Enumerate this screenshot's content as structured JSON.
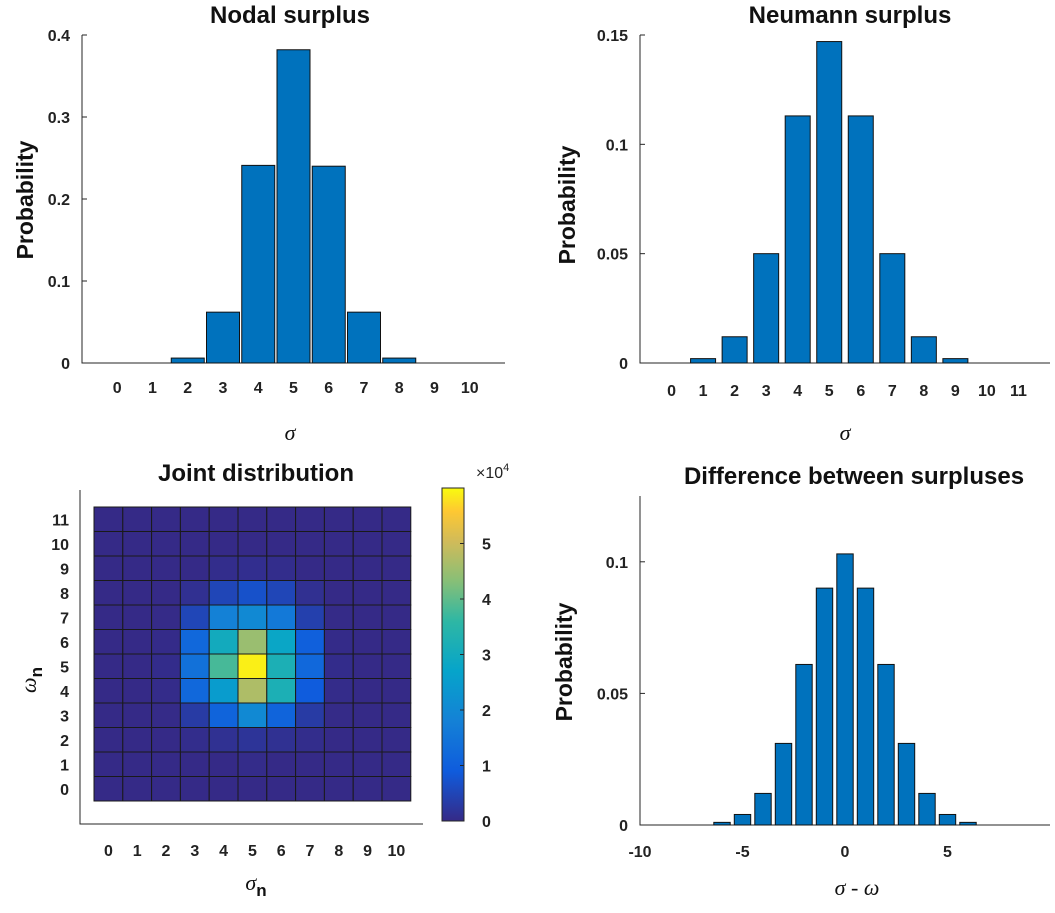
{
  "chart_data": [
    {
      "type": "bar",
      "title": "Nodal surplus",
      "xlabel": "σ",
      "ylabel": "Probability",
      "categories": [
        "0",
        "1",
        "2",
        "3",
        "4",
        "5",
        "6",
        "7",
        "8",
        "9",
        "10"
      ],
      "values": [
        0,
        0,
        0.006,
        0.062,
        0.241,
        0.382,
        0.24,
        0.062,
        0.006,
        0,
        0
      ],
      "ylim": [
        0,
        0.4
      ],
      "yticks": [
        "0",
        "0.1",
        "0.2",
        "0.3",
        "0.4"
      ],
      "grid": false
    },
    {
      "type": "bar",
      "title": "Neumann surplus",
      "xlabel": "σ",
      "ylabel": "Probability",
      "categories": [
        "0",
        "1",
        "2",
        "3",
        "4",
        "5",
        "6",
        "7",
        "8",
        "9",
        "10",
        "11"
      ],
      "values": [
        0,
        0.002,
        0.012,
        0.05,
        0.113,
        0.147,
        0.113,
        0.05,
        0.012,
        0.002,
        0,
        0
      ],
      "ylim": [
        0,
        0.15
      ],
      "yticks": [
        "0",
        "0.05",
        "0.1",
        "0.15"
      ],
      "grid": false
    },
    {
      "type": "heatmap",
      "title": "Joint distribution",
      "xlabel": "σ",
      "xlabel_sub": "n",
      "ylabel": "ω",
      "ylabel_sub": "n",
      "x": [
        "0",
        "1",
        "2",
        "3",
        "4",
        "5",
        "6",
        "7",
        "8",
        "9",
        "10"
      ],
      "y": [
        "0",
        "1",
        "2",
        "3",
        "4",
        "5",
        "6",
        "7",
        "8",
        "9",
        "10",
        "11"
      ],
      "values": [
        [
          0,
          0,
          0,
          0,
          0,
          0,
          0,
          0,
          0,
          0,
          0
        ],
        [
          0,
          0,
          0,
          0,
          0,
          300,
          0,
          0,
          0,
          0,
          0
        ],
        [
          0,
          0,
          0,
          500,
          1200,
          1800,
          1200,
          500,
          0,
          0,
          0
        ],
        [
          0,
          0,
          100,
          3000,
          11000,
          20000,
          11000,
          3000,
          100,
          0,
          0
        ],
        [
          0,
          0,
          300,
          12000,
          25000,
          47000,
          32000,
          9000,
          300,
          0,
          0
        ],
        [
          0,
          0,
          400,
          14000,
          38000,
          59000,
          32000,
          12000,
          400,
          0,
          0
        ],
        [
          0,
          0,
          200,
          12000,
          30000,
          45000,
          28000,
          10000,
          200,
          0,
          0
        ],
        [
          0,
          0,
          100,
          5000,
          18000,
          20000,
          16000,
          4000,
          100,
          0,
          0
        ],
        [
          0,
          0,
          0,
          1000,
          5000,
          7000,
          5000,
          1000,
          0,
          0,
          0
        ],
        [
          0,
          0,
          0,
          0,
          500,
          800,
          500,
          0,
          0,
          0,
          0
        ],
        [
          0,
          0,
          0,
          0,
          0,
          0,
          0,
          0,
          0,
          0,
          0
        ],
        [
          0,
          0,
          0,
          0,
          0,
          0,
          0,
          0,
          0,
          0,
          0
        ]
      ],
      "colorbar": {
        "range": [
          0,
          60000
        ],
        "ticks": [
          "0",
          "1",
          "2",
          "3",
          "4",
          "5"
        ],
        "multiplier": "×10",
        "multiplier_exp": "4",
        "colormap": "parula"
      }
    },
    {
      "type": "bar",
      "title": "Difference between surpluses",
      "xlabel": "σ - ω",
      "ylabel": "Probability",
      "x": [
        -6,
        -5,
        -4,
        -3,
        -2,
        -1,
        0,
        1,
        2,
        3,
        4,
        5,
        6
      ],
      "values": [
        0.001,
        0.004,
        0.012,
        0.031,
        0.061,
        0.09,
        0.103,
        0.09,
        0.061,
        0.031,
        0.012,
        0.004,
        0.001
      ],
      "xlim": [
        -10,
        10
      ],
      "ylim": [
        0,
        0.125
      ],
      "xticks": [
        "-10",
        "-5",
        "0",
        "5"
      ],
      "yticks": [
        "0",
        "0.05",
        "0.1"
      ],
      "grid": false
    }
  ]
}
